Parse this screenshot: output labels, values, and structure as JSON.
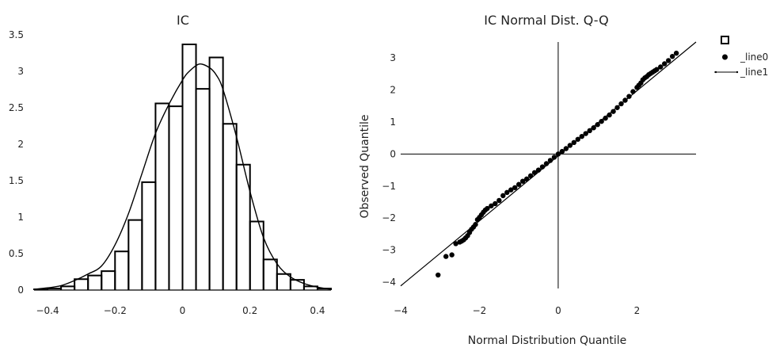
{
  "chart_data": [
    {
      "type": "histogram",
      "title": "IC",
      "xlabel": "",
      "ylabel": "",
      "xlim": [
        -0.44,
        0.44
      ],
      "ylim": [
        0,
        3.5
      ],
      "xticks": [
        -0.4,
        -0.2,
        0,
        0.2,
        0.4
      ],
      "xtick_labels": [
        "−0.4",
        "−0.2",
        "0",
        "0.2",
        "0.4"
      ],
      "yticks": [
        0,
        0.5,
        1,
        1.5,
        2,
        2.5,
        3,
        3.5
      ],
      "ytick_labels": [
        "0",
        "0.5",
        "1",
        "1.5",
        "2",
        "2.5",
        "3",
        "3.5"
      ],
      "bin_edges": [
        -0.44,
        -0.4,
        -0.36,
        -0.32,
        -0.28,
        -0.24,
        -0.2,
        -0.16,
        -0.12,
        -0.08,
        -0.04,
        0.0,
        0.04,
        0.08,
        0.12,
        0.16,
        0.2,
        0.24,
        0.28,
        0.32,
        0.36,
        0.4,
        0.44
      ],
      "density": [
        0.01,
        0.02,
        0.05,
        0.15,
        0.2,
        0.26,
        0.53,
        0.96,
        1.48,
        2.56,
        2.52,
        3.37,
        2.76,
        3.19,
        2.28,
        1.72,
        0.94,
        0.42,
        0.22,
        0.14,
        0.05,
        0.02
      ],
      "kde": {
        "x": [
          -0.44,
          -0.4,
          -0.36,
          -0.32,
          -0.28,
          -0.24,
          -0.2,
          -0.16,
          -0.12,
          -0.08,
          -0.04,
          0.0,
          0.02,
          0.05,
          0.08,
          0.1,
          0.12,
          0.16,
          0.2,
          0.24,
          0.28,
          0.32,
          0.36,
          0.4,
          0.44
        ],
        "y": [
          0.01,
          0.03,
          0.06,
          0.13,
          0.22,
          0.33,
          0.62,
          1.05,
          1.6,
          2.15,
          2.55,
          2.88,
          3.0,
          3.1,
          3.05,
          2.95,
          2.75,
          2.1,
          1.35,
          0.72,
          0.36,
          0.18,
          0.09,
          0.04,
          0.01
        ]
      }
    },
    {
      "type": "scatter",
      "title": "IC Normal Dist. Q-Q",
      "xlabel": "Normal Distribution Quantile",
      "ylabel": "Observed Quantile",
      "xlim": [
        -4,
        3.5
      ],
      "ylim": [
        -4.2,
        3.5
      ],
      "xticks": [
        -4,
        -2,
        0,
        2
      ],
      "xtick_labels": [
        "−4",
        "−2",
        "0",
        "2"
      ],
      "yticks": [
        -4,
        -3,
        -2,
        -1,
        0,
        1,
        2,
        3
      ],
      "ytick_labels": [
        "−4",
        "−3",
        "−2",
        "−1",
        "0",
        "1",
        "2",
        "3"
      ],
      "legend": {
        "position": "top-right",
        "entries": [
          "_line0",
          "_line1"
        ]
      },
      "series": [
        {
          "name": "_line0",
          "kind": "points",
          "x": [
            -3.05,
            -2.85,
            -2.7,
            -2.6,
            -2.5,
            -2.45,
            -2.4,
            -2.35,
            -2.3,
            -2.25,
            -2.2,
            -2.15,
            -2.1,
            -2.05,
            -2.0,
            -1.95,
            -1.9,
            -1.85,
            -1.8,
            -1.7,
            -1.6,
            -1.5,
            -1.4,
            -1.3,
            -1.2,
            -1.1,
            -1.0,
            -0.9,
            -0.8,
            -0.7,
            -0.6,
            -0.5,
            -0.4,
            -0.3,
            -0.2,
            -0.1,
            0.0,
            0.1,
            0.2,
            0.3,
            0.4,
            0.5,
            0.6,
            0.7,
            0.8,
            0.9,
            1.0,
            1.1,
            1.2,
            1.3,
            1.4,
            1.5,
            1.6,
            1.7,
            1.8,
            1.9,
            2.0,
            2.05,
            2.1,
            2.15,
            2.2,
            2.25,
            2.3,
            2.35,
            2.4,
            2.45,
            2.5,
            2.6,
            2.7,
            2.8,
            2.9,
            3.0
          ],
          "y": [
            -3.78,
            -3.2,
            -3.15,
            -2.8,
            -2.75,
            -2.72,
            -2.68,
            -2.62,
            -2.55,
            -2.45,
            -2.35,
            -2.28,
            -2.2,
            -2.05,
            -1.98,
            -1.9,
            -1.82,
            -1.75,
            -1.7,
            -1.62,
            -1.55,
            -1.45,
            -1.3,
            -1.2,
            -1.12,
            -1.05,
            -0.95,
            -0.85,
            -0.78,
            -0.68,
            -0.58,
            -0.5,
            -0.4,
            -0.3,
            -0.2,
            -0.1,
            0.0,
            0.08,
            0.17,
            0.27,
            0.36,
            0.46,
            0.55,
            0.64,
            0.73,
            0.82,
            0.92,
            1.02,
            1.12,
            1.22,
            1.33,
            1.45,
            1.57,
            1.68,
            1.8,
            1.95,
            2.08,
            2.15,
            2.22,
            2.32,
            2.38,
            2.42,
            2.48,
            2.52,
            2.56,
            2.6,
            2.64,
            2.72,
            2.82,
            2.92,
            3.05,
            3.15
          ]
        },
        {
          "name": "_line1",
          "kind": "line",
          "x": [
            -4.0,
            3.5
          ],
          "y": [
            -4.12,
            3.5
          ]
        }
      ]
    }
  ]
}
